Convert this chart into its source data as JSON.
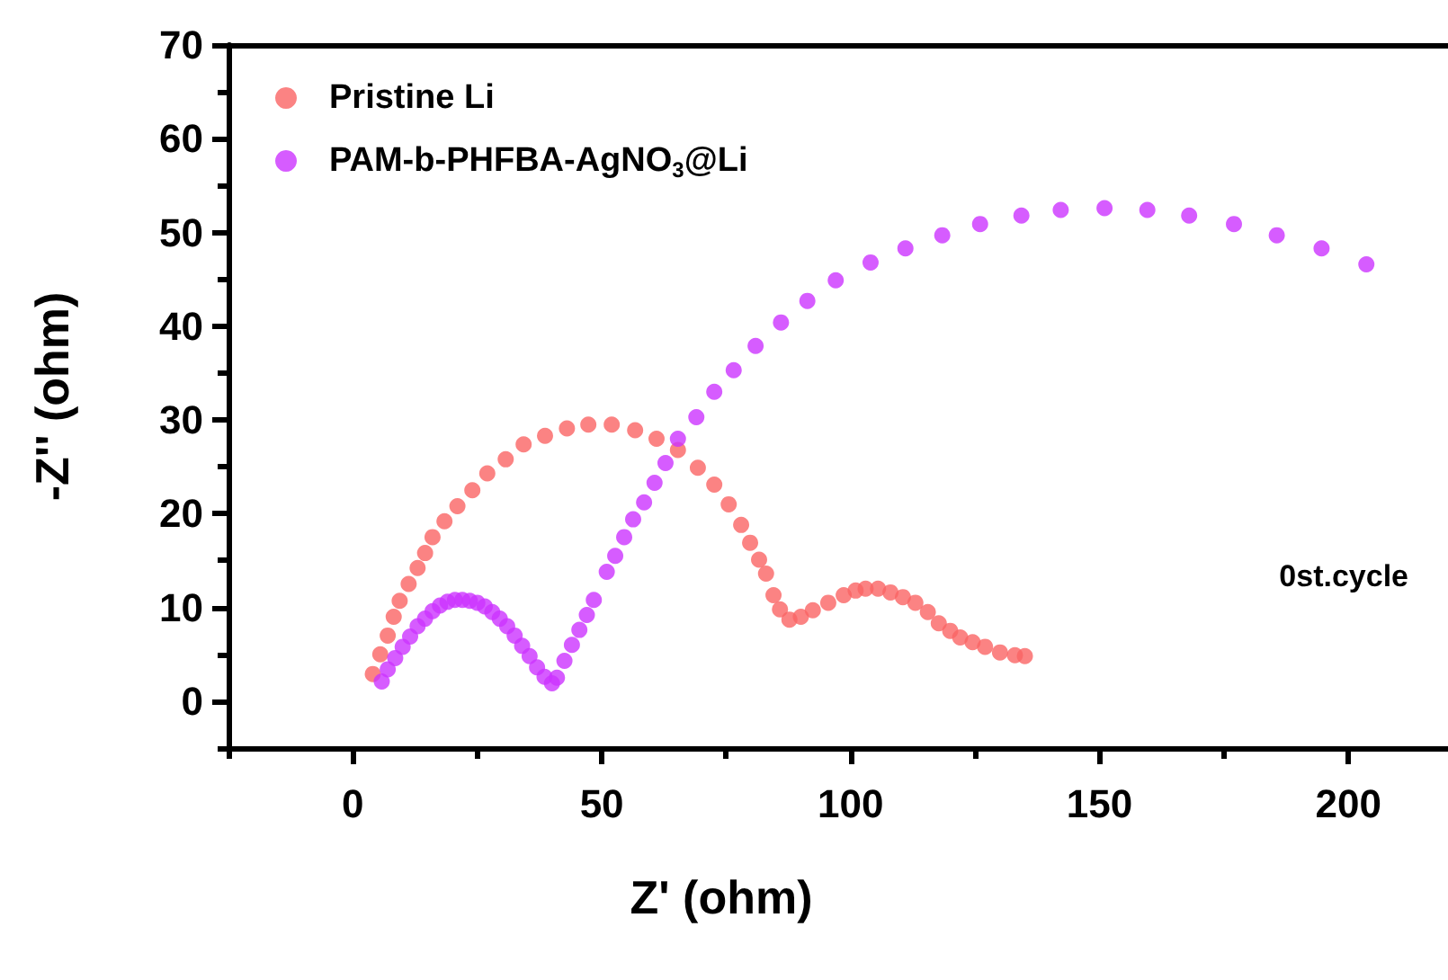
{
  "chart_data": {
    "type": "scatter",
    "xlabel": "Z' (ohm)",
    "ylabel": "-Z'' (ohm)",
    "xlim": [
      -25,
      220
    ],
    "xticks": [
      0,
      50,
      100,
      150,
      200
    ],
    "ylim": [
      -5,
      70
    ],
    "yticks": [
      0,
      10,
      20,
      30,
      40,
      50,
      60,
      70
    ],
    "grid": false,
    "legend": "top left",
    "marker": "circle",
    "annotations": [
      "0st.cycle"
    ],
    "series": [
      {
        "name": "Pristine Li",
        "color": "#fa6464",
        "x": [
          4,
          5.5,
          7,
          8.2,
          9.4,
          11.2,
          13,
          14.5,
          16,
          18.4,
          21,
          24,
          27,
          30.7,
          34.3,
          38.6,
          43,
          47.3,
          52,
          56.7,
          61,
          65.3,
          69.3,
          72.6,
          75.5,
          78,
          79.8,
          81.6,
          83,
          84.5,
          85.8,
          87.7,
          90,
          92.4,
          95.5,
          98.6,
          101,
          103,
          105.5,
          108,
          110.5,
          113,
          115.5,
          117.7,
          120,
          122,
          124.5,
          127,
          130,
          133,
          135
        ],
        "values": [
          2.9,
          5,
          7,
          9,
          10.7,
          12.5,
          14.2,
          15.8,
          17.5,
          19.2,
          20.8,
          22.5,
          24.3,
          25.8,
          27.4,
          28.3,
          29.1,
          29.5,
          29.5,
          28.9,
          28,
          26.8,
          24.9,
          23.1,
          21,
          18.8,
          16.9,
          15.1,
          13.6,
          11.3,
          9.8,
          8.7,
          9,
          9.7,
          10.5,
          11.3,
          11.8,
          12,
          12,
          11.6,
          11.1,
          10.5,
          9.5,
          8.3,
          7.5,
          6.8,
          6.3,
          5.8,
          5.2,
          4.9,
          4.8
        ]
      },
      {
        "name": "PAM-b-PHFBA-AgNO$_{3}$@Li",
        "color": "#cc33ff",
        "x": [
          5.8,
          7,
          8.5,
          10,
          11.5,
          13,
          14.5,
          16,
          17.5,
          19,
          20.5,
          22,
          23.5,
          25,
          26.5,
          28,
          29.5,
          31,
          32.5,
          34,
          35.5,
          37,
          38.5,
          40,
          41,
          42.5,
          44,
          45.5,
          47,
          48.4,
          51,
          52.7,
          54.5,
          56.3,
          58.5,
          60.6,
          62.8,
          65.3,
          69,
          72.6,
          76.5,
          80.9,
          86,
          91.3,
          97,
          104,
          111,
          118.4,
          126,
          134.3,
          142.2,
          151,
          159.6,
          168,
          177,
          185.6,
          194.6,
          203.6
        ],
        "values": [
          2.1,
          3.4,
          4.6,
          5.8,
          6.9,
          8,
          8.8,
          9.6,
          10.2,
          10.6,
          10.8,
          10.8,
          10.7,
          10.5,
          10.1,
          9.5,
          8.8,
          8,
          7,
          5.9,
          4.8,
          3.6,
          2.6,
          1.9,
          2.5,
          4.3,
          6,
          7.6,
          9.2,
          10.8,
          13.8,
          15.5,
          17.5,
          19.4,
          21.2,
          23.3,
          25.4,
          28,
          30.3,
          33,
          35.3,
          37.9,
          40.4,
          42.7,
          44.9,
          46.8,
          48.3,
          49.7,
          50.9,
          51.8,
          52.4,
          52.6,
          52.4,
          51.8,
          50.9,
          49.7,
          48.3,
          46.6
        ]
      }
    ]
  }
}
